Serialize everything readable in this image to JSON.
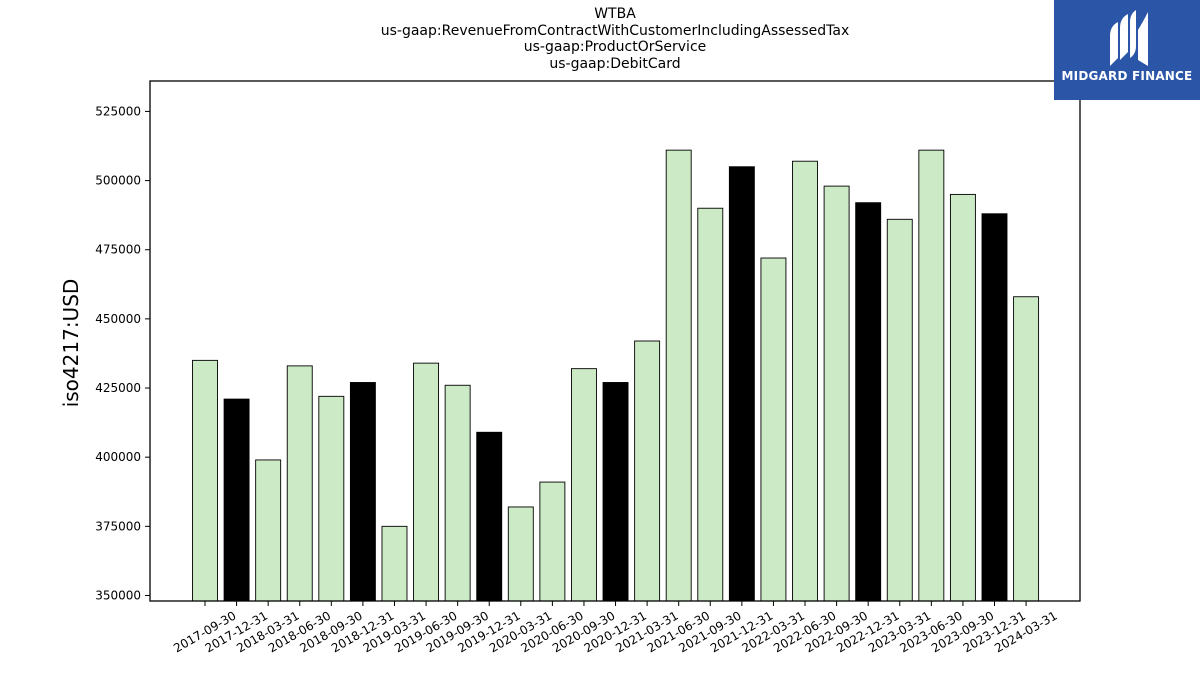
{
  "titles": [
    "WTBA",
    "us-gaap:RevenueFromContractWithCustomerIncludingAssessedTax",
    "us-gaap:ProductOrService",
    "us-gaap:DebitCard"
  ],
  "logo": {
    "text": "MIDGARD FINANCE",
    "background": "#2b56a8",
    "icon": "midgard-logo-icon"
  },
  "chart_data": {
    "type": "bar",
    "title": "WTBA",
    "subtitles": [
      "us-gaap:RevenueFromContractWithCustomerIncludingAssessedTax",
      "us-gaap:ProductOrService",
      "us-gaap:DebitCard"
    ],
    "xlabel": "",
    "ylabel": "iso4217:USD",
    "ylim": [
      348000,
      536000
    ],
    "yticks": [
      350000,
      375000,
      400000,
      425000,
      450000,
      475000,
      500000,
      525000
    ],
    "grid": false,
    "colors": {
      "q4": "#000000",
      "other": "#cdeac6",
      "edge": "#000000"
    },
    "categories": [
      "2017-09-30",
      "2017-12-31",
      "2018-03-31",
      "2018-06-30",
      "2018-09-30",
      "2018-12-31",
      "2019-03-31",
      "2019-06-30",
      "2019-09-30",
      "2019-12-31",
      "2020-03-31",
      "2020-06-30",
      "2020-09-30",
      "2020-12-31",
      "2021-03-31",
      "2021-06-30",
      "2021-09-30",
      "2021-12-31",
      "2022-03-31",
      "2022-06-30",
      "2022-09-30",
      "2022-12-31",
      "2023-03-31",
      "2023-06-30",
      "2023-09-30",
      "2023-12-31",
      "2024-03-31"
    ],
    "values": [
      435000,
      421000,
      399000,
      433000,
      422000,
      427000,
      375000,
      434000,
      426000,
      409000,
      382000,
      391000,
      432000,
      427000,
      442000,
      511000,
      490000,
      505000,
      472000,
      507000,
      498000,
      492000,
      486000,
      511000,
      495000,
      488000,
      458000
    ]
  }
}
